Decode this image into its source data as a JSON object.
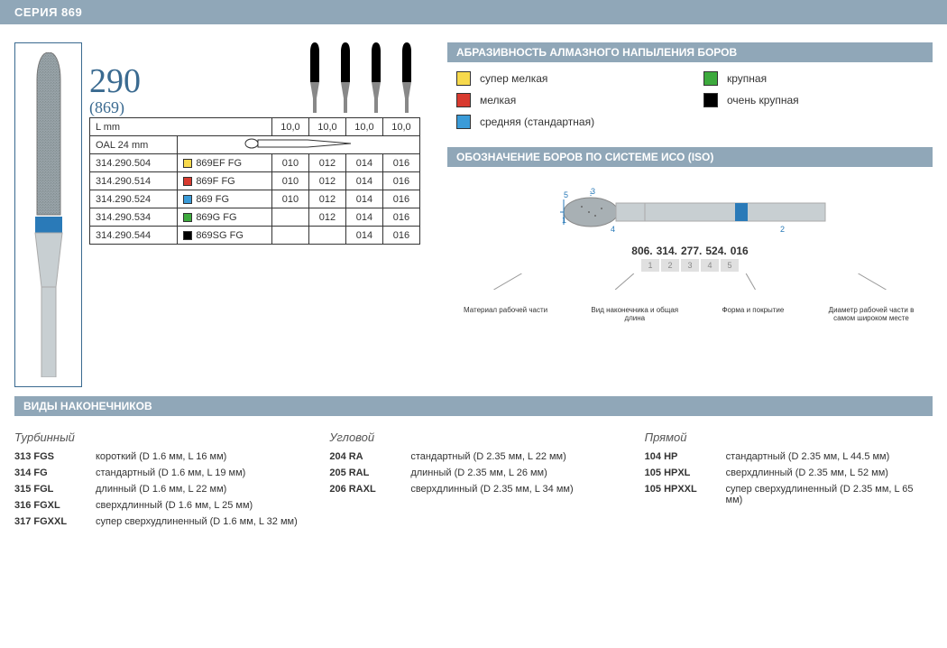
{
  "header": {
    "series_title": "СЕРИЯ 869"
  },
  "product": {
    "model_number": "290",
    "model_sub": "(869)",
    "oal_label": "OAL 24 mm",
    "l_label": "L mm",
    "size_headers": [
      "10,0",
      "10,0",
      "10,0",
      "10,0"
    ],
    "rows": [
      {
        "code": "314.290.504",
        "swatch": "#f7d94c",
        "name": "869EF FG",
        "sizes": [
          "010",
          "012",
          "014",
          "016"
        ]
      },
      {
        "code": "314.290.514",
        "swatch": "#d83a2f",
        "name": "869F FG",
        "sizes": [
          "010",
          "012",
          "014",
          "016"
        ]
      },
      {
        "code": "314.290.524",
        "swatch": "#3a9bd8",
        "name": "869 FG",
        "sizes": [
          "010",
          "012",
          "014",
          "016"
        ]
      },
      {
        "code": "314.290.534",
        "swatch": "#3daa3d",
        "name": "869G FG",
        "sizes": [
          "",
          "012",
          "014",
          "016"
        ]
      },
      {
        "code": "314.290.544",
        "swatch": "#000000",
        "name": "869SG FG",
        "sizes": [
          "",
          "",
          "014",
          "016"
        ]
      }
    ],
    "bur_svg": {
      "body_color": "#333",
      "tip_color": "#222",
      "shank_color": "#bbb"
    },
    "large_bur": {
      "tip_color": "#9aa5aa",
      "band_color": "#2a7ab8",
      "shank_color": "#c8cfd2"
    }
  },
  "abrasivity": {
    "title": "АБРАЗИВНОСТЬ АЛМАЗНОГО НАПЫЛЕНИЯ БОРОВ",
    "items": [
      {
        "color": "#f7d94c",
        "label": "супер мелкая"
      },
      {
        "color": "#3daa3d",
        "label": "крупная"
      },
      {
        "color": "#d83a2f",
        "label": "мелкая"
      },
      {
        "color": "#000000",
        "label": "очень крупная"
      },
      {
        "color": "#3a9bd8",
        "label": "средняя (стандартная)"
      }
    ]
  },
  "iso": {
    "title": "ОБОЗНАЧЕНИЕ БОРОВ ПО СИСТЕМЕ ИСО (ISO)",
    "code_parts": [
      "806.",
      "314.",
      "277.",
      "524.",
      "016"
    ],
    "box_nums": [
      "1",
      "2",
      "3",
      "4",
      "5"
    ],
    "labels": [
      "Материал рабочей части",
      "Вид наконечника и общая длина",
      "Форма и покрытие",
      "Диаметр рабочей части в самом широком месте"
    ],
    "diagram_numbers": {
      "n1": "1",
      "n2": "2",
      "n3": "3",
      "n4": "4",
      "n5": "5"
    },
    "diagram_colors": {
      "head": "#a8b0b4",
      "band": "#2a7ab8",
      "shank": "#c8cfd2"
    }
  },
  "tips": {
    "title": "ВИДЫ НАКОНЕЧНИКОВ",
    "cols": [
      {
        "heading": "Турбинный",
        "rows": [
          {
            "code": "313 FGS",
            "desc": "короткий (D 1.6 мм, L 16 мм)"
          },
          {
            "code": "314 FG",
            "desc": "стандартный (D 1.6 мм, L 19 мм)"
          },
          {
            "code": "315 FGL",
            "desc": "длинный (D 1.6 мм, L 22 мм)"
          },
          {
            "code": "316 FGXL",
            "desc": "сверхдлинный (D 1.6 мм, L 25 мм)"
          },
          {
            "code": "317 FGXXL",
            "desc": "супер сверхудлиненный (D 1.6 мм, L 32 мм)"
          }
        ]
      },
      {
        "heading": "Угловой",
        "rows": [
          {
            "code": "204 RA",
            "desc": "стандартный (D 2.35 мм, L 22 мм)"
          },
          {
            "code": "205 RAL",
            "desc": "длинный (D 2.35 мм, L 26 мм)"
          },
          {
            "code": "206 RAXL",
            "desc": "сверхдлинный (D 2.35 мм, L 34 мм)"
          }
        ]
      },
      {
        "heading": "Прямой",
        "rows": [
          {
            "code": "104 HP",
            "desc": "стандартный (D 2.35 мм, L 44.5 мм)"
          },
          {
            "code": "105 HPXL",
            "desc": "сверхдлинный (D 2.35 мм, L 52 мм)"
          },
          {
            "code": "105 HPXXL",
            "desc": "супер сверхудлиненный (D 2.35 мм, L 65 мм)"
          }
        ]
      }
    ]
  }
}
